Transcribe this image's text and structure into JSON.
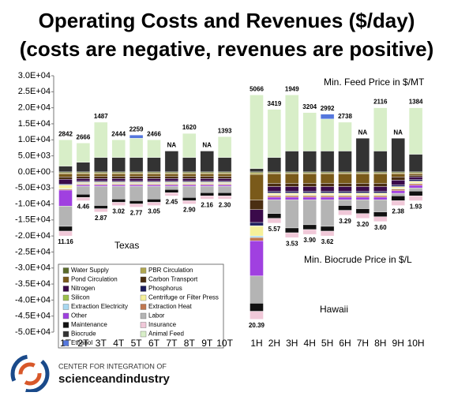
{
  "chart_data": {
    "type": "bar",
    "title": [
      "Operating Costs and Revenues ($/day)",
      "(costs are negative, revenues are positive)"
    ],
    "categories": [
      "1T",
      "2T",
      "3T",
      "4T",
      "5T",
      "6T",
      "7T",
      "8T",
      "9T",
      "10T",
      "1H",
      "2H",
      "3H",
      "4H",
      "5H",
      "6H",
      "7H",
      "8H",
      "9H",
      "10H"
    ],
    "ylim": [
      -50000,
      30000
    ],
    "yticks": [
      {
        "value": -50000,
        "label": "-5.0E+04"
      },
      {
        "value": -45000,
        "label": "-4.5E+04"
      },
      {
        "value": -40000,
        "label": "-4.0E+04"
      },
      {
        "value": -35000,
        "label": "-3.5E+04"
      },
      {
        "value": -30000,
        "label": "-3.0E+04"
      },
      {
        "value": -25000,
        "label": "-2.5E+04"
      },
      {
        "value": -20000,
        "label": "-2.0E+04"
      },
      {
        "value": -15000,
        "label": "-1.5E+04"
      },
      {
        "value": -10000,
        "label": "-1.0E+04"
      },
      {
        "value": -5000,
        "label": "-5.0E+03"
      },
      {
        "value": 0,
        "label": "0.0E+00"
      },
      {
        "value": 5000,
        "label": "5.0E+03"
      },
      {
        "value": 10000,
        "label": "1.0E+04"
      },
      {
        "value": 15000,
        "label": "1.5E+04"
      },
      {
        "value": 20000,
        "label": "2.0E+04"
      },
      {
        "value": 25000,
        "label": "2.5E+04"
      },
      {
        "value": 30000,
        "label": "3.0E+04"
      }
    ],
    "stacked": true,
    "grid": false,
    "legend": "lower left",
    "series": [
      {
        "name": "Water Supply",
        "color": "#5a6b2a",
        "values": [
          -300,
          -300,
          -300,
          -300,
          -300,
          -300,
          -300,
          -300,
          -300,
          -300,
          -300,
          -300,
          -300,
          -300,
          -300,
          -300,
          -300,
          -300,
          -300,
          -300
        ]
      },
      {
        "name": "PBR Circulation",
        "color": "#b0a650",
        "values": [
          -300,
          -300,
          -300,
          -300,
          -300,
          -300,
          -300,
          -300,
          -300,
          -300,
          -500,
          -300,
          -300,
          -300,
          -300,
          -300,
          -300,
          -300,
          -300,
          -300
        ]
      },
      {
        "name": "Pond Circulation",
        "color": "#7a5a1a",
        "values": [
          -1000,
          -800,
          -800,
          -800,
          -800,
          -800,
          -800,
          -800,
          -800,
          -800,
          -8000,
          -3000,
          -3000,
          -3000,
          -3000,
          -3000,
          -3000,
          -3000,
          -1000,
          -500
        ]
      },
      {
        "name": "Carbon Transport",
        "color": "#4a2e12",
        "values": [
          -700,
          -700,
          -700,
          -700,
          -700,
          -700,
          -700,
          -700,
          -700,
          -700,
          -3000,
          -1000,
          -1000,
          -1000,
          -1000,
          -1000,
          -1000,
          -1000,
          -1000,
          -500
        ]
      },
      {
        "name": "Nitrogen",
        "color": "#3a0a4a",
        "values": [
          -1500,
          -800,
          -800,
          -800,
          -800,
          -800,
          -800,
          -800,
          -800,
          -800,
          -4000,
          -1500,
          -1500,
          -1500,
          -1500,
          -1500,
          -1500,
          -1500,
          -1500,
          -800
        ]
      },
      {
        "name": "Phosphorus",
        "color": "#1c1c5c",
        "values": [
          -300,
          -300,
          -300,
          -300,
          -300,
          -300,
          -300,
          -300,
          -300,
          -300,
          -1000,
          -500,
          -500,
          -500,
          -500,
          -500,
          -500,
          -500,
          -500,
          -500
        ]
      },
      {
        "name": "Silicon",
        "color": "#9cc04c",
        "values": [
          -100,
          -100,
          -100,
          -100,
          -100,
          -100,
          -100,
          -100,
          -100,
          -100,
          -200,
          -100,
          -100,
          -100,
          -100,
          -100,
          -100,
          -100,
          -100,
          -100
        ]
      },
      {
        "name": "Centrifuge or Filter Press",
        "color": "#f6f09a",
        "values": [
          -1000,
          -300,
          -300,
          -300,
          -300,
          -300,
          -300,
          -300,
          -300,
          -300,
          -3000,
          -500,
          -500,
          -500,
          -500,
          -500,
          -500,
          -500,
          -500,
          -500
        ]
      },
      {
        "name": "Extraction Electricity",
        "color": "#a8d8f0",
        "values": [
          -200,
          -200,
          -200,
          -200,
          -200,
          -200,
          -200,
          -200,
          -200,
          -200,
          -500,
          -200,
          -200,
          -200,
          -200,
          -200,
          -200,
          -200,
          -200,
          -200
        ]
      },
      {
        "name": "Extraction Heat",
        "color": "#c07850",
        "values": [
          -300,
          -300,
          -300,
          -300,
          -300,
          -300,
          -300,
          -300,
          -300,
          -300,
          -1000,
          -500,
          -500,
          -500,
          -500,
          -500,
          -500,
          -500,
          -500,
          -500
        ]
      },
      {
        "name": "Other",
        "color": "#a040e0",
        "values": [
          -5000,
          -400,
          -400,
          -400,
          -400,
          -400,
          -400,
          -400,
          -400,
          -400,
          -11000,
          -800,
          -800,
          -800,
          -800,
          -800,
          -800,
          -800,
          -800,
          -800
        ]
      },
      {
        "name": "Labor",
        "color": "#b4b4b4",
        "values": [
          -6300,
          -2500,
          -6000,
          -4000,
          -4500,
          -4000,
          -1000,
          -3500,
          -2000,
          -2000,
          -8500,
          -4300,
          -8800,
          -7800,
          -8300,
          -1800,
          -2800,
          -3800,
          -800,
          -1000
        ]
      },
      {
        "name": "Maintenance",
        "color": "#111111",
        "values": [
          -1500,
          -1000,
          -1000,
          -1000,
          -1000,
          -1000,
          -1000,
          -1000,
          -1000,
          -1000,
          -2500,
          -1500,
          -1500,
          -1500,
          -1500,
          -1500,
          -1500,
          -1500,
          -1500,
          -1500
        ]
      },
      {
        "name": "Insurance",
        "color": "#f0c8d8",
        "values": [
          -1500,
          -1000,
          -1000,
          -1000,
          -1000,
          -1000,
          -1000,
          -1000,
          -1000,
          -1000,
          -2500,
          -1500,
          -1500,
          -1500,
          -1500,
          -1500,
          -1500,
          -1500,
          -1500,
          -1500
        ]
      },
      {
        "name": "Biocrude",
        "color": "#333333",
        "values": [
          1800,
          3000,
          4500,
          4500,
          4500,
          4500,
          6500,
          4500,
          6500,
          4500,
          1000,
          4500,
          6500,
          6500,
          6500,
          6500,
          10500,
          6500,
          10500,
          5500
        ]
      },
      {
        "name": "Animal Feed",
        "color": "#d8eec8",
        "values": [
          8200,
          6000,
          11000,
          5500,
          6000,
          5500,
          0,
          7500,
          0,
          6500,
          23000,
          15000,
          17500,
          12000,
          10000,
          9000,
          0,
          13500,
          0,
          14500
        ]
      },
      {
        "name": "Ethanol",
        "color": "#5577dd",
        "values": [
          0,
          0,
          0,
          0,
          1000,
          0,
          0,
          0,
          0,
          0,
          0,
          0,
          0,
          0,
          1500,
          0,
          0,
          0,
          0,
          0
        ]
      }
    ],
    "top_labels": [
      "2842",
      "2666",
      "1487",
      "2444",
      "2259",
      "2466",
      "NA",
      "1620",
      "NA",
      "1393",
      "5066",
      "3419",
      "1949",
      "3204",
      "2992",
      "2738",
      "NA",
      "2116",
      "NA",
      "1384"
    ],
    "bottom_labels": [
      "11.16",
      "4.46",
      "2.87",
      "3.02",
      "2.77",
      "3.05",
      "2.45",
      "2.90",
      "2.16",
      "2.30",
      "20.39",
      "5.57",
      "3.53",
      "3.90",
      "3.62",
      "3.29",
      "3.20",
      "3.60",
      "2.38",
      "1.93"
    ],
    "annotations": [
      "Min. Feed Price in $/MT",
      "Min. Biocrude Price in $/L",
      "Texas",
      "Hawaii"
    ],
    "logo": [
      "CENTER FOR INTEGRATION OF",
      "scienceandindustry"
    ]
  }
}
